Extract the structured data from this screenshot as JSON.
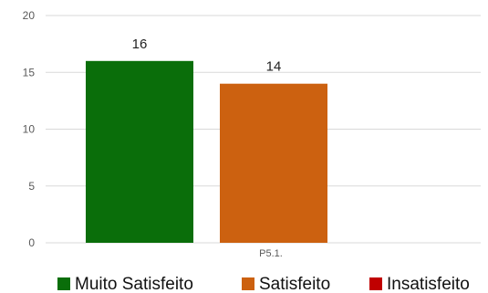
{
  "chart_data": {
    "type": "bar",
    "categories": [
      "P5.1."
    ],
    "series": [
      {
        "name": "Muito Satisfeito",
        "values": [
          16
        ],
        "color": "#0a6e0a"
      },
      {
        "name": "Satisfeito",
        "values": [
          14
        ],
        "color": "#cc6110"
      },
      {
        "name": "Insatisfeito",
        "values": [
          0
        ],
        "color": "#c00000"
      }
    ],
    "ylim": [
      0,
      20
    ],
    "yticks": [
      0,
      5,
      10,
      15,
      20
    ],
    "grid": true,
    "legend": "bottom",
    "data_labels": true
  }
}
